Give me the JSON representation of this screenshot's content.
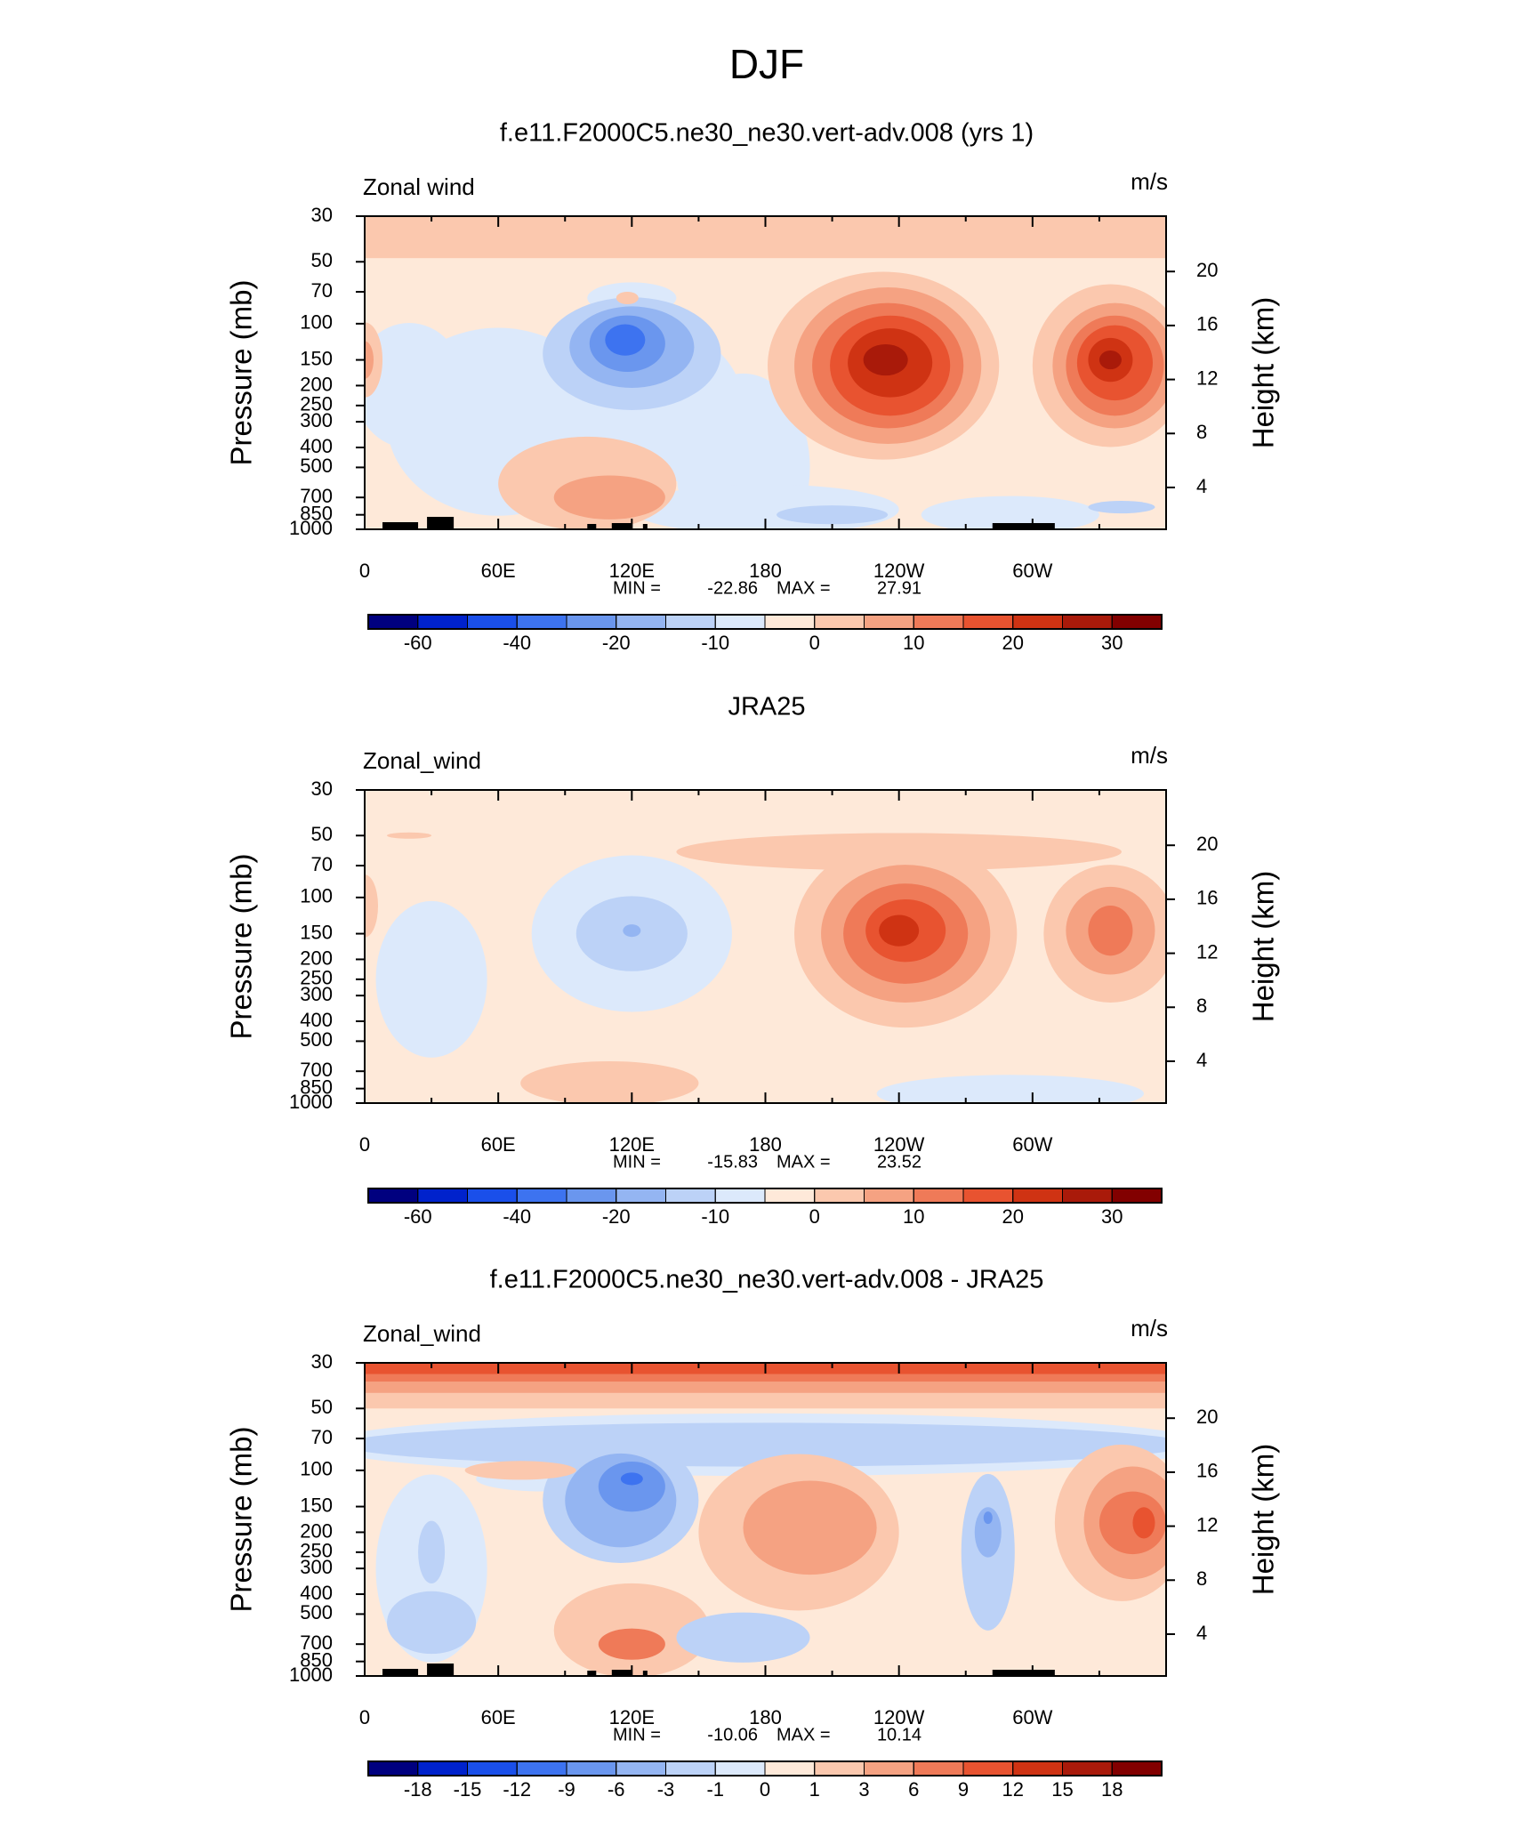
{
  "title": "DJF",
  "chart_data": [
    {
      "type": "contour",
      "title": "f.e11.F2000C5.ne30_ne30.vert-adv.008 (yrs 1)",
      "left_label": "Zonal wind",
      "right_label": "m/s",
      "ylabel": "Pressure (mb)",
      "y2label": "Height (km)",
      "xlim": [
        0,
        360
      ],
      "xticks": [
        0,
        {
          "value": 60,
          "label": "60E"
        },
        {
          "value": 120,
          "label": "120E"
        },
        180,
        {
          "value": 240,
          "label": "120W"
        },
        {
          "value": 300,
          "label": "60W"
        }
      ],
      "xminor_ticks": [
        30,
        90,
        150,
        210,
        270,
        330
      ],
      "ylim": [
        1000,
        30
      ],
      "log_y": true,
      "yticks": [
        30,
        50,
        70,
        100,
        150,
        200,
        250,
        300,
        400,
        500,
        700,
        850,
        1000
      ],
      "y2lim": [
        0.9,
        24.1
      ],
      "y2ticks": [
        4,
        8,
        12,
        16,
        20
      ],
      "stats": {
        "min_label": "MIN =",
        "min": -22.86,
        "max_label": "MAX =",
        "max": 27.91
      },
      "colorbar": {
        "levels": [
          -60,
          -50,
          -40,
          -30,
          -20,
          -15,
          -10,
          -5,
          0,
          5,
          10,
          15,
          20,
          25,
          30
        ],
        "ticks": [
          -60,
          -40,
          -20,
          -10,
          0,
          10,
          20,
          30
        ],
        "colors": [
          "#00007f",
          "#0022cc",
          "#1a4fea",
          "#3d73f0",
          "#6a96ee",
          "#94b5f2",
          "#bcd2f7",
          "#dce9fb",
          "#fee9d9",
          "#fbc8ae",
          "#f5a282",
          "#ef7a58",
          "#e85330",
          "#cf3313",
          "#a91a0a",
          "#820000"
        ]
      }
    },
    {
      "type": "contour",
      "title": "JRA25",
      "left_label": "Zonal_wind",
      "right_label": "m/s",
      "ylabel": "Pressure (mb)",
      "y2label": "Height (km)",
      "xlim": [
        0,
        360
      ],
      "xticks": [
        0,
        {
          "value": 60,
          "label": "60E"
        },
        {
          "value": 120,
          "label": "120E"
        },
        180,
        {
          "value": 240,
          "label": "120W"
        },
        {
          "value": 300,
          "label": "60W"
        }
      ],
      "xminor_ticks": [
        30,
        90,
        150,
        210,
        270,
        330
      ],
      "ylim": [
        1000,
        30
      ],
      "log_y": true,
      "yticks": [
        30,
        50,
        70,
        100,
        150,
        200,
        250,
        300,
        400,
        500,
        700,
        850,
        1000
      ],
      "y2lim": [
        0.9,
        24.1
      ],
      "y2ticks": [
        4,
        8,
        12,
        16,
        20
      ],
      "stats": {
        "min_label": "MIN =",
        "min": -15.83,
        "max_label": "MAX =",
        "max": 23.52
      },
      "colorbar": {
        "levels": [
          -60,
          -50,
          -40,
          -30,
          -20,
          -15,
          -10,
          -5,
          0,
          5,
          10,
          15,
          20,
          25,
          30
        ],
        "ticks": [
          -60,
          -40,
          -20,
          -10,
          0,
          10,
          20,
          30
        ],
        "colors": [
          "#00007f",
          "#0022cc",
          "#1a4fea",
          "#3d73f0",
          "#6a96ee",
          "#94b5f2",
          "#bcd2f7",
          "#dce9fb",
          "#fee9d9",
          "#fbc8ae",
          "#f5a282",
          "#ef7a58",
          "#e85330",
          "#cf3313",
          "#a91a0a",
          "#820000"
        ]
      }
    },
    {
      "type": "contour",
      "title": "f.e11.F2000C5.ne30_ne30.vert-adv.008 - JRA25",
      "left_label": "Zonal_wind",
      "right_label": "m/s",
      "ylabel": "Pressure (mb)",
      "y2label": "Height (km)",
      "xlim": [
        0,
        360
      ],
      "xticks": [
        0,
        {
          "value": 60,
          "label": "60E"
        },
        {
          "value": 120,
          "label": "120E"
        },
        180,
        {
          "value": 240,
          "label": "120W"
        },
        {
          "value": 300,
          "label": "60W"
        }
      ],
      "xminor_ticks": [
        30,
        90,
        150,
        210,
        270,
        330
      ],
      "ylim": [
        1000,
        30
      ],
      "log_y": true,
      "yticks": [
        30,
        50,
        70,
        100,
        150,
        200,
        250,
        300,
        400,
        500,
        700,
        850,
        1000
      ],
      "y2lim": [
        0.9,
        24.1
      ],
      "y2ticks": [
        4,
        8,
        12,
        16,
        20
      ],
      "stats": {
        "min_label": "MIN =",
        "min": -10.06,
        "max_label": "MAX =",
        "max": 10.14
      },
      "colorbar": {
        "levels": [
          -18,
          -15,
          -12,
          -9,
          -6,
          -3,
          -1,
          0,
          1,
          3,
          6,
          9,
          12,
          15,
          18
        ],
        "ticks": [
          -18,
          -15,
          -12,
          -9,
          -6,
          -3,
          -1,
          0,
          1,
          3,
          6,
          9,
          12,
          15,
          18
        ],
        "colors": [
          "#00007f",
          "#0022cc",
          "#1a4fea",
          "#3d73f0",
          "#6a96ee",
          "#94b5f2",
          "#bcd2f7",
          "#dce9fb",
          "#fee9d9",
          "#fbc8ae",
          "#f5a282",
          "#ef7a58",
          "#e85330",
          "#cf3313",
          "#a91a0a",
          "#820000"
        ]
      }
    }
  ]
}
